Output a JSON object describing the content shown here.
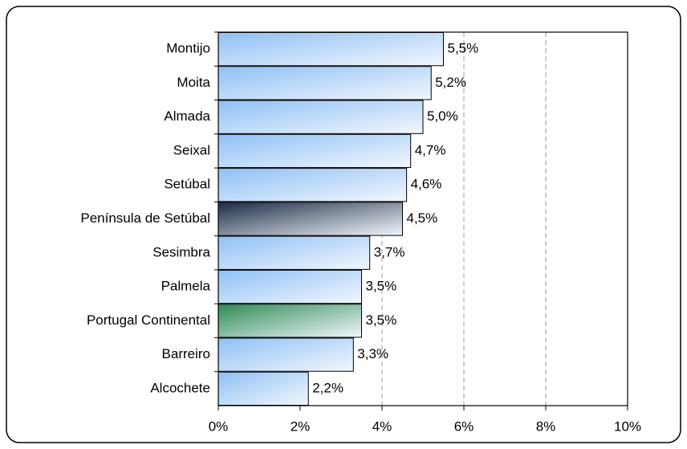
{
  "chart_data": {
    "type": "hbar",
    "categories": [
      "Montijo",
      "Moita",
      "Almada",
      "Seixal",
      "Setúbal",
      "Península de Setúbal",
      "Sesimbra",
      "Palmela",
      "Portugal Continental",
      "Barreiro",
      "Alcochete"
    ],
    "values": [
      5.5,
      5.2,
      5.0,
      4.7,
      4.6,
      4.5,
      3.7,
      3.5,
      3.5,
      3.3,
      2.2
    ],
    "value_labels": [
      "5,5%",
      "5,2%",
      "5,0%",
      "4,7%",
      "4,6%",
      "4,5%",
      "3,7%",
      "3,5%",
      "3,5%",
      "3,3%",
      "2,2%"
    ],
    "colors": [
      "#8fc0f5",
      "#8fc0f5",
      "#8fc0f5",
      "#8fc0f5",
      "#8fc0f5",
      "#1c2b44",
      "#8fc0f5",
      "#8fc0f5",
      "#2e8a55",
      "#8fc0f5",
      "#8fc0f5"
    ],
    "label_colors": [
      "#333399",
      "#333399",
      "#333399",
      "#333399",
      "#333399",
      "#333399",
      "#333399",
      "#333399",
      "#339966",
      "#333399",
      "#333399"
    ],
    "xlim": [
      0,
      10
    ],
    "xticks": [
      {
        "value": 0,
        "label": "0%"
      },
      {
        "value": 2,
        "label": "2%"
      },
      {
        "value": 4,
        "label": "4%"
      },
      {
        "value": 6,
        "label": "6%"
      },
      {
        "value": 8,
        "label": "8%"
      },
      {
        "value": 10,
        "label": "10%"
      }
    ],
    "grid": true
  }
}
